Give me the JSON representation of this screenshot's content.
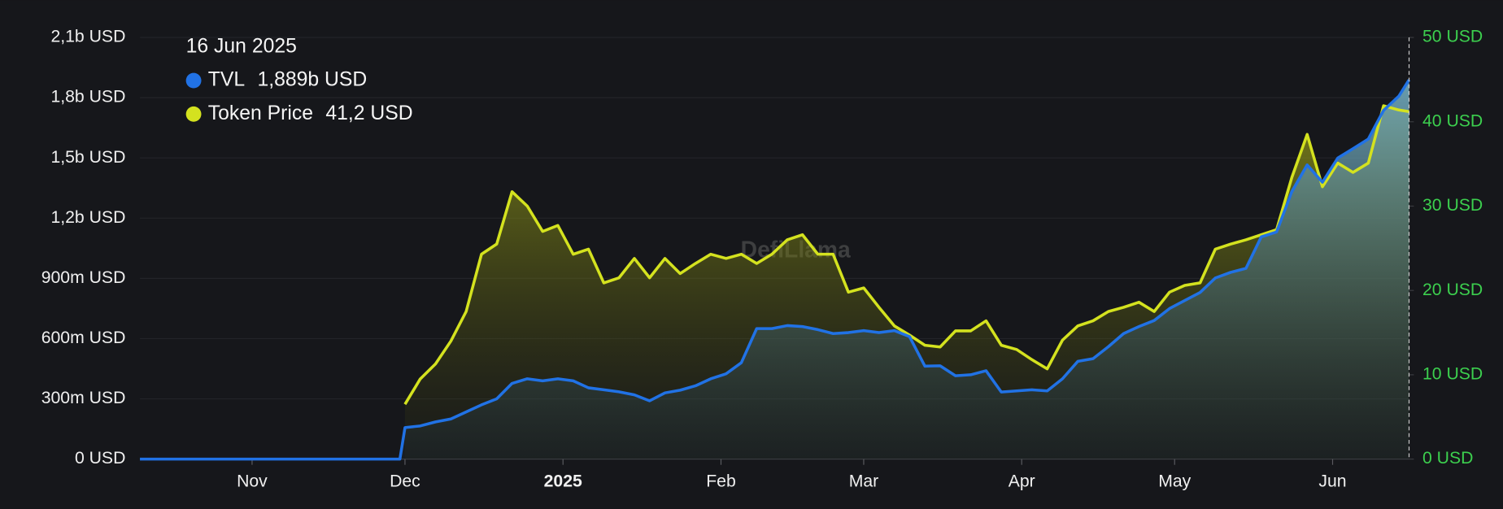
{
  "chart_data": {
    "type": "line",
    "watermark": "DefiLlama",
    "x": [
      "2024-10-10",
      "2024-11-30",
      "2024-12-01",
      "2024-12-04",
      "2024-12-07",
      "2024-12-10",
      "2024-12-13",
      "2024-12-16",
      "2024-12-19",
      "2024-12-22",
      "2024-12-25",
      "2024-12-28",
      "2024-12-31",
      "2025-01-03",
      "2025-01-06",
      "2025-01-09",
      "2025-01-12",
      "2025-01-15",
      "2025-01-18",
      "2025-01-21",
      "2025-01-24",
      "2025-01-27",
      "2025-01-30",
      "2025-02-02",
      "2025-02-05",
      "2025-02-08",
      "2025-02-11",
      "2025-02-14",
      "2025-02-17",
      "2025-02-20",
      "2025-02-23",
      "2025-02-26",
      "2025-03-01",
      "2025-03-04",
      "2025-03-07",
      "2025-03-10",
      "2025-03-13",
      "2025-03-16",
      "2025-03-19",
      "2025-03-22",
      "2025-03-25",
      "2025-03-28",
      "2025-03-31",
      "2025-04-03",
      "2025-04-06",
      "2025-04-09",
      "2025-04-12",
      "2025-04-15",
      "2025-04-18",
      "2025-04-21",
      "2025-04-24",
      "2025-04-27",
      "2025-04-30",
      "2025-05-03",
      "2025-05-06",
      "2025-05-09",
      "2025-05-12",
      "2025-05-15",
      "2025-05-18",
      "2025-05-21",
      "2025-05-24",
      "2025-05-27",
      "2025-05-30",
      "2025-06-02",
      "2025-06-05",
      "2025-06-08",
      "2025-06-11",
      "2025-06-14",
      "2025-06-16"
    ],
    "series": [
      {
        "name": "TVL",
        "color": "#2172e5",
        "axis": "y",
        "values": [
          0,
          0,
          157000000,
          165000000,
          185000000,
          200000000,
          235000000,
          270000000,
          300000000,
          377000000,
          400000000,
          390000000,
          400000000,
          390000000,
          355000000,
          345000000,
          335000000,
          320000000,
          290000000,
          330000000,
          343000000,
          365000000,
          400000000,
          425000000,
          480000000,
          650000000,
          650000000,
          665000000,
          660000000,
          645000000,
          625000000,
          630000000,
          640000000,
          630000000,
          640000000,
          610000000,
          463000000,
          465000000,
          415000000,
          420000000,
          440000000,
          334000000,
          340000000,
          345000000,
          340000000,
          400000000,
          487000000,
          500000000,
          560000000,
          625000000,
          660000000,
          690000000,
          750000000,
          790000000,
          830000000,
          902000000,
          930000000,
          950000000,
          1107000000,
          1131000000,
          1332000000,
          1465000000,
          1379000000,
          1499000000,
          1546000000,
          1594000000,
          1737000000,
          1808000000,
          1889000000
        ]
      },
      {
        "name": "Token Price",
        "color": "#d4e21f",
        "axis": "y2",
        "values": [
          null,
          null,
          6.5,
          9.5,
          11.3,
          14,
          17.5,
          24.3,
          25.5,
          31.7,
          30,
          27,
          27.7,
          24.3,
          24.9,
          20.9,
          21.5,
          23.8,
          21.5,
          23.8,
          22,
          23.2,
          24.3,
          23.8,
          24.3,
          23.2,
          24.3,
          26,
          26.6,
          24.3,
          24.3,
          19.8,
          20.3,
          18,
          15.8,
          14.7,
          13.5,
          13.3,
          15.2,
          15.2,
          16.4,
          13.5,
          13,
          11.8,
          10.7,
          14.1,
          15.8,
          16.4,
          17.5,
          18,
          18.6,
          17.5,
          19.8,
          20.6,
          20.9,
          24.9,
          25.5,
          26,
          26.6,
          27.2,
          33.4,
          38.5,
          32.3,
          35.1,
          34,
          35.1,
          41.9,
          41.4,
          41.2
        ]
      }
    ],
    "xlim": [
      "2024-10-10",
      "2025-06-16"
    ],
    "xticks": [
      {
        "value": "2024-11-01",
        "label": "Nov"
      },
      {
        "value": "2024-12-01",
        "label": "Dec"
      },
      {
        "value": "2025-01-01",
        "label": "2025"
      },
      {
        "value": "2025-02-01",
        "label": "Feb"
      },
      {
        "value": "2025-03-01",
        "label": "Mar"
      },
      {
        "value": "2025-04-01",
        "label": "Apr"
      },
      {
        "value": "2025-05-01",
        "label": "May"
      },
      {
        "value": "2025-06-01",
        "label": "Jun"
      }
    ],
    "ylim": [
      0,
      2100000000
    ],
    "yticks": [
      {
        "value": 0,
        "label": "0 USD"
      },
      {
        "value": 300000000,
        "label": "300m USD"
      },
      {
        "value": 600000000,
        "label": "600m USD"
      },
      {
        "value": 900000000,
        "label": "900m USD"
      },
      {
        "value": 1200000000,
        "label": "1,2b USD"
      },
      {
        "value": 1500000000,
        "label": "1,5b USD"
      },
      {
        "value": 1800000000,
        "label": "1,8b USD"
      },
      {
        "value": 2100000000,
        "label": "2,1b USD"
      }
    ],
    "y2lim": [
      0,
      50
    ],
    "y2ticks": [
      {
        "value": 0,
        "label": "0 USD"
      },
      {
        "value": 10,
        "label": "10 USD"
      },
      {
        "value": 20,
        "label": "20 USD"
      },
      {
        "value": 30,
        "label": "30 USD"
      },
      {
        "value": 40,
        "label": "40 USD"
      },
      {
        "value": 50,
        "label": "50 USD"
      }
    ],
    "grid": true,
    "tooltip": {
      "title": "16 Jun 2025",
      "values": [
        {
          "value": 1889000000,
          "label": "1,889b USD"
        },
        {
          "value": 41.2,
          "label": "41,2 USD"
        }
      ]
    }
  }
}
